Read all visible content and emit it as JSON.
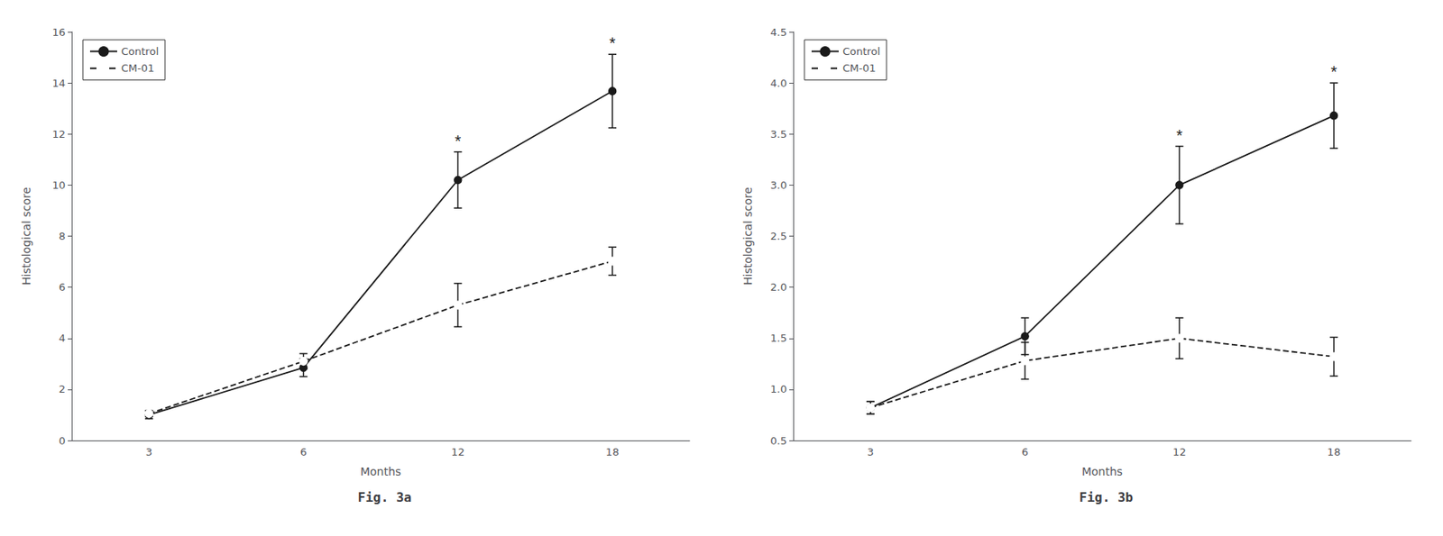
{
  "chart_data": [
    {
      "type": "line",
      "title": "Fig. 3a",
      "xlabel": "Months",
      "ylabel": "Histological score",
      "categories": [
        "3",
        "6",
        "12",
        "18"
      ],
      "series": [
        {
          "name": "Control",
          "color": "#1a1a1a",
          "line_style": "solid",
          "marker": "filled",
          "values": [
            1.0,
            2.85,
            10.2,
            13.68
          ],
          "errors": [
            0.15,
            0.35,
            1.1,
            1.44
          ]
        },
        {
          "name": "CM-01",
          "color": "#1a1a1a",
          "line_style": "dashed",
          "marker": "open",
          "values": [
            1.05,
            3.1,
            5.3,
            7.02
          ],
          "errors": [
            0.12,
            0.3,
            0.85,
            0.55
          ]
        }
      ],
      "annotations": [
        {
          "text": "*",
          "x": "12",
          "series": "Control"
        },
        {
          "text": "*",
          "x": "18",
          "series": "Control"
        }
      ],
      "ylim": [
        0,
        16
      ],
      "yticks": [
        0,
        2,
        4,
        6,
        8,
        10,
        12,
        14,
        16
      ],
      "grid": false,
      "legend": "upper left"
    },
    {
      "type": "line",
      "title": "Fig. 3b",
      "xlabel": "Months",
      "ylabel": "Histological score",
      "categories": [
        "3",
        "6",
        "12",
        "18"
      ],
      "series": [
        {
          "name": "Control",
          "color": "#1a1a1a",
          "line_style": "solid",
          "marker": "filled",
          "values": [
            0.82,
            1.52,
            3.0,
            3.68
          ],
          "errors": [
            0.06,
            0.18,
            0.38,
            0.32
          ]
        },
        {
          "name": "CM-01",
          "color": "#1a1a1a",
          "line_style": "dashed",
          "marker": "open",
          "values": [
            0.82,
            1.28,
            1.5,
            1.32
          ],
          "errors": [
            0.06,
            0.18,
            0.2,
            0.19
          ]
        }
      ],
      "annotations": [
        {
          "text": "*",
          "x": "12",
          "series": "Control"
        },
        {
          "text": "*",
          "x": "18",
          "series": "Control"
        }
      ],
      "ylim": [
        0.5,
        4.5
      ],
      "yticks": [
        0.5,
        {
          "value": 1.0,
          "label": "1.0"
        },
        1.5,
        {
          "value": 2.0,
          "label": "2.0"
        },
        2.5,
        {
          "value": 3.0,
          "label": "3.0"
        },
        3.5,
        {
          "value": 4.0,
          "label": "4.0"
        },
        4.5
      ],
      "grid": false,
      "legend": "upper left"
    }
  ]
}
